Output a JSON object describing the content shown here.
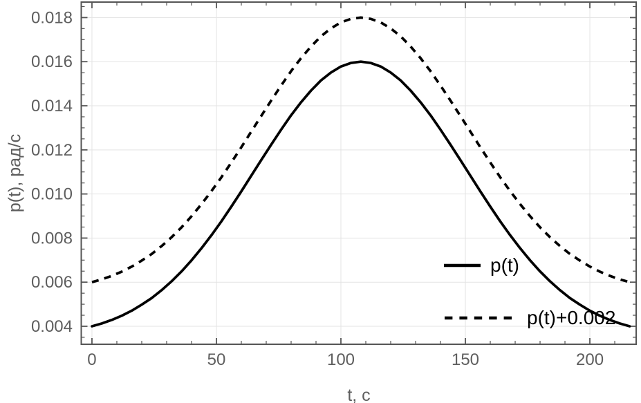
{
  "chart_data": {
    "type": "line",
    "title": "",
    "xlabel": "t, c",
    "ylabel": "p(t), рад/с",
    "xlim": [
      -4.3,
      218.6
    ],
    "ylim": [
      0.003185,
      0.018703
    ],
    "x_ticks": [
      0,
      50,
      100,
      150,
      200
    ],
    "x_tick_labels": [
      "0",
      "50",
      "100",
      "150",
      "200"
    ],
    "x_minor_step": 10,
    "y_ticks": [
      0.004,
      0.006,
      0.008,
      0.01,
      0.012,
      0.014,
      0.016,
      0.018
    ],
    "y_tick_labels": [
      "0.004",
      "0.006",
      "0.008",
      "0.010",
      "0.012",
      "0.014",
      "0.016",
      "0.018"
    ],
    "y_minor_step": 0.0005,
    "grid": true,
    "legend_position": "inside-bottom-right",
    "series": [
      {
        "name": "p(t)",
        "line_style": "solid",
        "color": "#000000",
        "t_start": 0,
        "t_step": 4,
        "values": [
          0.004,
          0.00413,
          0.00429,
          0.00448,
          0.00471,
          0.00498,
          0.00528,
          0.00564,
          0.00604,
          0.00649,
          0.00699,
          0.00754,
          0.00813,
          0.00876,
          0.00943,
          0.01012,
          0.01083,
          0.01154,
          0.01224,
          0.01292,
          0.01357,
          0.01416,
          0.01469,
          0.01515,
          0.01551,
          0.01578,
          0.01594,
          0.016,
          0.01594,
          0.01578,
          0.01551,
          0.01515,
          0.01469,
          0.01416,
          0.01357,
          0.01292,
          0.01224,
          0.01154,
          0.01083,
          0.01012,
          0.00943,
          0.00876,
          0.00813,
          0.00754,
          0.00699,
          0.00649,
          0.00604,
          0.00564,
          0.00528,
          0.00498,
          0.00471,
          0.00448,
          0.00429,
          0.00413,
          0.004
        ],
        "peak_value": 0.016,
        "peak_t": 108
      },
      {
        "name": "p(t)+0.002",
        "line_style": "dashed",
        "color": "#000000",
        "offset_from_first_series": 0.002,
        "peak_value": 0.018,
        "peak_t": 108
      }
    ],
    "colors": {
      "curve": "#000000",
      "frame": "#555555",
      "tick_label": "#5e5e5e",
      "gridline": "#e3e3e3",
      "background": "#ffffff"
    }
  },
  "legend": {
    "items": [
      {
        "label": "p(t)",
        "style": "solid"
      },
      {
        "label": "p(t)+0.002",
        "style": "dashed"
      }
    ]
  }
}
